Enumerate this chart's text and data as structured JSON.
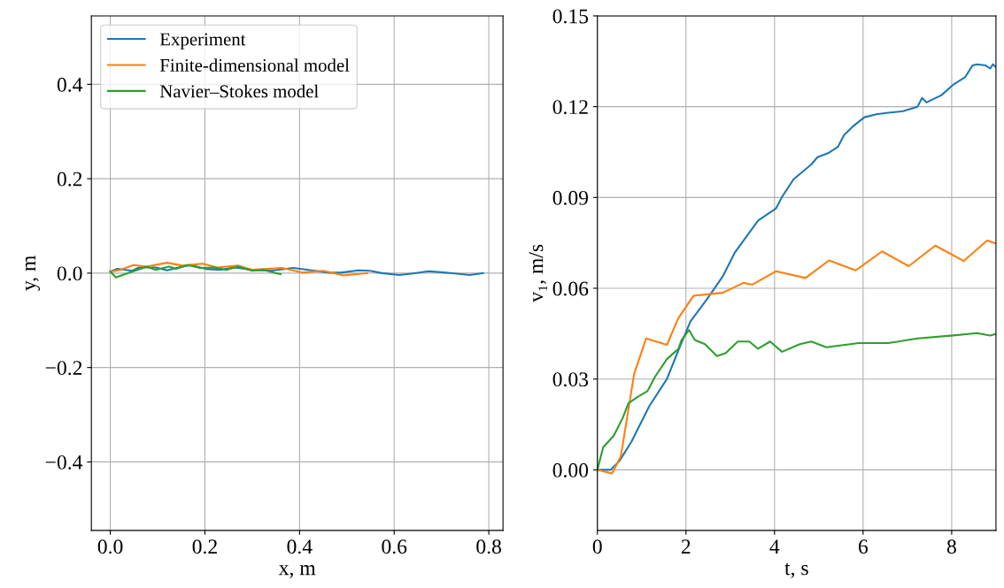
{
  "chart_data": [
    {
      "type": "line",
      "xlabel": "x, m",
      "ylabel": "y, m",
      "xlim": [
        -0.04,
        0.83
      ],
      "ylim": [
        -0.545,
        0.545
      ],
      "xticks": [
        {
          "value": 0,
          "label": "0.0"
        },
        0.2,
        0.4,
        0.6,
        0.8
      ],
      "yticks": [
        {
          "value": -0.4,
          "label": "−0.4"
        },
        {
          "value": -0.2,
          "label": "−0.2"
        },
        {
          "value": 0,
          "label": "0.0"
        },
        0.2,
        0.4
      ],
      "grid": true,
      "legend": "top left",
      "series": [
        {
          "name": "Experiment",
          "color": "#1f77b4",
          "x": [
            0,
            0.015,
            0.046,
            0.061,
            0.096,
            0.12,
            0.152,
            0.17,
            0.201,
            0.232,
            0.263,
            0.3,
            0.338,
            0.387,
            0.425,
            0.462,
            0.487,
            0.524,
            0.549,
            0.574,
            0.611,
            0.636,
            0.673,
            0.71,
            0.76,
            0.788
          ],
          "values": [
            0.003,
            0.009,
            0.005,
            0.012,
            0.012,
            0.006,
            0.014,
            0.017,
            0.009,
            0.007,
            0.012,
            0.007,
            0.005,
            0.011,
            0.006,
            0.001,
            0.001,
            0.006,
            0.005,
            0,
            -0.004,
            -0.001,
            0.004,
            0.001,
            -0.004,
            0
          ]
        },
        {
          "name": "Finite-dimensional model",
          "color": "#ff7f0e",
          "x": [
            0,
            0.021,
            0.049,
            0.077,
            0.12,
            0.152,
            0.195,
            0.226,
            0.27,
            0.3,
            0.363,
            0.406,
            0.45,
            0.493,
            0.543
          ],
          "values": [
            0.003,
            0.007,
            0.017,
            0.014,
            0.022,
            0.016,
            0.02,
            0.012,
            0.016,
            0.007,
            0.011,
            0.001,
            0.005,
            -0.005,
            0
          ]
        },
        {
          "name": "Navier–Stokes model",
          "color": "#2ca02c",
          "x": [
            0,
            0.012,
            0.034,
            0.052,
            0.077,
            0.096,
            0.124,
            0.139,
            0.164,
            0.189,
            0.22,
            0.245,
            0.27,
            0.3,
            0.325,
            0.35,
            0.36
          ],
          "values": [
            0.003,
            -0.009,
            -0.001,
            0.005,
            0.014,
            0.007,
            0.014,
            0.009,
            0.017,
            0.011,
            0.012,
            0.007,
            0.014,
            0.005,
            0.007,
            0,
            -0.002
          ]
        }
      ]
    },
    {
      "type": "line",
      "xlabel": "t, s",
      "ylabel": "v₁, m/s",
      "xlim": [
        0,
        9
      ],
      "ylim": [
        -0.02,
        0.15
      ],
      "xticks": [
        0,
        2,
        4,
        6,
        8
      ],
      "yticks": [
        {
          "value": 0,
          "label": "0.00"
        },
        {
          "value": 0.03,
          "label": "0.03"
        },
        {
          "value": 0.06,
          "label": "0.06"
        },
        {
          "value": 0.09,
          "label": "0.09"
        },
        {
          "value": 0.12,
          "label": "0.12"
        },
        {
          "value": 0.15,
          "label": "0.15"
        }
      ],
      "grid": true,
      "series": [
        {
          "color": "#1f77b4",
          "x": [
            0,
            0.3,
            0.5,
            0.77,
            1.17,
            1.57,
            1.83,
            2.1,
            2.43,
            2.6,
            2.83,
            3.1,
            3.63,
            4.03,
            4.17,
            4.43,
            4.83,
            4.97,
            5.23,
            5.43,
            5.57,
            5.77,
            6.03,
            6.3,
            6.57,
            6.9,
            7.23,
            7.33,
            7.43,
            7.77,
            8.03,
            8.3,
            8.47,
            8.57,
            8.77,
            8.87,
            8.93,
            9.0
          ],
          "values": [
            0,
            0,
            0.003,
            0.0093,
            0.021,
            0.03,
            0.0395,
            0.049,
            0.0555,
            0.059,
            0.0639,
            0.0717,
            0.0824,
            0.0863,
            0.0902,
            0.096,
            0.1009,
            0.1033,
            0.1048,
            0.1067,
            0.1106,
            0.1135,
            0.1165,
            0.1175,
            0.118,
            0.1185,
            0.12,
            0.1229,
            0.1214,
            0.1238,
            0.1272,
            0.1297,
            0.1336,
            0.134,
            0.1336,
            0.1326,
            0.134,
            0.1331
          ]
        },
        {
          "color": "#ff7f0e",
          "x": [
            0,
            0.33,
            0.53,
            0.83,
            1.1,
            1.57,
            1.83,
            2.17,
            2.83,
            3.3,
            3.5,
            4.03,
            4.7,
            5.23,
            5.83,
            6.43,
            7.03,
            7.63,
            8.27,
            8.8,
            9.0
          ],
          "values": [
            0,
            -0.0012,
            0.0045,
            0.0317,
            0.0434,
            0.0413,
            0.0502,
            0.0575,
            0.0585,
            0.0618,
            0.0612,
            0.0656,
            0.0634,
            0.0692,
            0.0659,
            0.0722,
            0.0673,
            0.0741,
            0.069,
            0.0758,
            0.0748
          ]
        },
        {
          "color": "#2ca02c",
          "x": [
            0,
            0.13,
            0.37,
            0.57,
            0.7,
            0.9,
            1.13,
            1.3,
            1.57,
            1.83,
            1.9,
            2.07,
            2.2,
            2.43,
            2.7,
            2.9,
            3.17,
            3.43,
            3.63,
            3.9,
            4.17,
            4.57,
            4.83,
            5.17,
            5.9,
            6.57,
            7.23,
            8.03,
            8.57,
            8.87,
            9.0
          ],
          "values": [
            0,
            0.0074,
            0.0113,
            0.0171,
            0.022,
            0.024,
            0.026,
            0.0307,
            0.0366,
            0.04,
            0.0429,
            0.0462,
            0.0429,
            0.0415,
            0.0376,
            0.0386,
            0.0424,
            0.0424,
            0.04,
            0.0424,
            0.039,
            0.0415,
            0.0424,
            0.0405,
            0.0419,
            0.0419,
            0.0434,
            0.0444,
            0.0452,
            0.0444,
            0.0449
          ]
        }
      ]
    }
  ]
}
